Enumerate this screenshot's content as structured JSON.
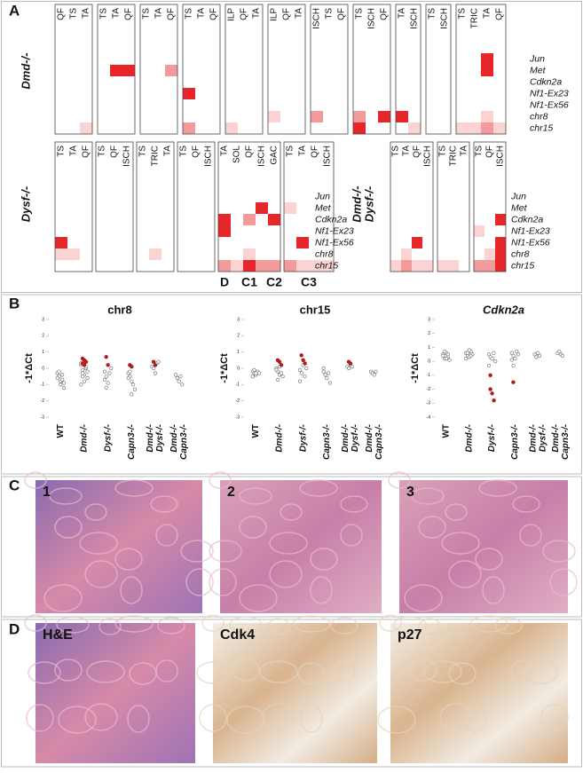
{
  "panels": {
    "a": "A",
    "b": "B",
    "c": "C",
    "d": "D"
  },
  "heatmap": {
    "rows": [
      "Jun",
      "Met",
      "Cdkn2a",
      "Nf1-Ex23",
      "Nf1-Ex56",
      "chr8",
      "chr15"
    ],
    "groups": [
      {
        "label": [
          "Dmd-/-"
        ],
        "boxes": [
          {
            "columns": [
              "QF",
              "TS",
              "TA"
            ],
            "cells": [
              [
                6,
                2,
                1
              ]
            ]
          },
          {
            "columns": [
              "TS",
              "TA",
              "QF"
            ],
            "cells": [
              [
                1,
                1,
                3
              ],
              [
                1,
                2,
                3
              ]
            ]
          },
          {
            "columns": [
              "TS",
              "TA",
              "QF"
            ],
            "cells": [
              [
                1,
                2,
                2
              ]
            ]
          },
          {
            "columns": [
              "TS",
              "TA",
              "QF"
            ],
            "cells": [
              [
                3,
                0,
                3
              ],
              [
                6,
                0,
                2
              ]
            ]
          },
          {
            "columns": [
              "ILP",
              "QF",
              "TA"
            ],
            "cells": [
              [
                6,
                0,
                1
              ]
            ]
          },
          {
            "columns": [
              "ILP",
              "QF",
              "TA"
            ],
            "cells": [
              [
                5,
                0,
                1
              ]
            ]
          },
          {
            "columns": [
              "ISCH",
              "TS",
              "QF"
            ],
            "cells": [
              [
                5,
                0,
                2
              ]
            ]
          },
          {
            "columns": [
              "TS",
              "ISCH",
              "QF"
            ],
            "cells": [
              [
                5,
                0,
                2
              ],
              [
                6,
                0,
                3
              ],
              [
                5,
                2,
                3
              ]
            ]
          },
          {
            "columns": [
              "TA",
              "ISCH"
            ],
            "cells": [
              [
                5,
                0,
                3
              ],
              [
                6,
                1,
                1
              ]
            ]
          },
          {
            "columns": [
              "TS",
              "ISCH"
            ],
            "cells": []
          },
          {
            "columns": [
              "TS",
              "TRIC",
              "TA",
              "QF"
            ],
            "cells": [
              [
                0,
                2,
                3
              ],
              [
                1,
                2,
                3
              ],
              [
                5,
                2,
                1
              ],
              [
                6,
                0,
                1
              ],
              [
                6,
                1,
                1
              ],
              [
                6,
                2,
                2
              ],
              [
                6,
                3,
                1
              ]
            ]
          }
        ]
      },
      {
        "label": [
          "Dysf-/-"
        ],
        "boxes": [
          {
            "columns": [
              "TS",
              "TA",
              "QF"
            ],
            "cells": [
              [
                4,
                0,
                3
              ],
              [
                5,
                0,
                1
              ],
              [
                5,
                1,
                1
              ]
            ]
          },
          {
            "columns": [
              "TS",
              "QF",
              "ISCH"
            ],
            "cells": []
          },
          {
            "columns": [
              "TS",
              "TRIC",
              "TA"
            ],
            "cells": [
              [
                5,
                1,
                1
              ]
            ]
          },
          {
            "columns": [
              "TS",
              "QF",
              "ISCH"
            ],
            "cells": []
          },
          {
            "columns": [
              "TA",
              "SOL",
              "QF",
              "ISCH",
              "GAC"
            ],
            "cells": [
              [
                2,
                0,
                3
              ],
              [
                3,
                0,
                3
              ],
              [
                2,
                2,
                2
              ],
              [
                1,
                3,
                3
              ],
              [
                2,
                4,
                3
              ],
              [
                5,
                2,
                1
              ],
              [
                6,
                0,
                2
              ],
              [
                6,
                1,
                1
              ],
              [
                6,
                2,
                3
              ],
              [
                6,
                3,
                2
              ],
              [
                6,
                4,
                2
              ]
            ]
          },
          {
            "columns": [
              "TS",
              "TA",
              "QF",
              "ISCH"
            ],
            "cells": [
              [
                1,
                0,
                1
              ],
              [
                4,
                1,
                3
              ],
              [
                6,
                0,
                2
              ],
              [
                6,
                1,
                1
              ],
              [
                6,
                2,
                1
              ],
              [
                6,
                3,
                1
              ]
            ]
          }
        ]
      },
      {
        "label": [
          "Dmd-/-",
          "Dysf-/-"
        ],
        "boxes": [
          {
            "columns": [
              "TS",
              "TA",
              "QF",
              "ISCH"
            ],
            "cells": [
              [
                4,
                2,
                3
              ],
              [
                5,
                1,
                1
              ],
              [
                6,
                0,
                1
              ],
              [
                6,
                1,
                2
              ],
              [
                6,
                2,
                1
              ],
              [
                6,
                3,
                1
              ]
            ]
          },
          {
            "columns": [
              "TS",
              "TRIC",
              "TA"
            ],
            "cells": [
              [
                6,
                0,
                1
              ],
              [
                6,
                1,
                1
              ]
            ]
          },
          {
            "columns": [
              "TS",
              "QF",
              "ISCH"
            ],
            "cells": [
              [
                2,
                2,
                3
              ],
              [
                3,
                0,
                1
              ],
              [
                4,
                2,
                3
              ],
              [
                5,
                2,
                3
              ],
              [
                5,
                1,
                1
              ],
              [
                6,
                0,
                2
              ],
              [
                6,
                1,
                2
              ],
              [
                6,
                2,
                3
              ]
            ]
          }
        ]
      }
    ],
    "clusters": [
      "D",
      "C1",
      "C2",
      "C3"
    ]
  },
  "panel_b": {
    "ylabel": "-1*ΔCt",
    "groups": [
      [
        "WT"
      ],
      [
        "Dmd-/-"
      ],
      [
        "Dysf-/-"
      ],
      [
        "Capn3-/-"
      ],
      [
        "Dmd-/-",
        "Dysf-/-"
      ],
      [
        "Dmd-/-",
        "Capn3-/-"
      ]
    ],
    "plots": [
      {
        "title": "chr8",
        "ylim": [
          -3,
          3
        ],
        "yticks": [
          -3,
          -2,
          -1,
          0,
          1,
          2,
          3
        ],
        "values": [
          [
            -0.3,
            -0.5,
            -0.8,
            -0.4,
            -1.2,
            -0.6,
            -0.2,
            -1.0,
            -0.7,
            -0.9
          ],
          [
            0.2,
            -0.1,
            -0.4,
            0,
            -0.6,
            0.3,
            -0.3,
            -0.8,
            0.1,
            -0.2,
            -1.0,
            -0.5
          ],
          [
            -0.2,
            -0.5,
            -0.9,
            -0.3,
            0,
            -0.7,
            -1.2
          ],
          [
            -0.3,
            -0.5,
            -0.8,
            -1.0,
            -1.3,
            -0.6,
            -0.2,
            -1.6
          ],
          [
            0.1,
            0,
            -0.3,
            0.3,
            0.4
          ],
          [
            -0.4,
            -0.6,
            -0.8,
            -0.5,
            -1.0
          ]
        ],
        "highlight": [
          [],
          [
            0.6,
            0.5,
            0.4,
            0.3,
            0.2
          ],
          [
            0.7,
            0.2
          ],
          [
            0.2,
            0.1
          ],
          [
            0.4,
            0.2
          ],
          []
        ]
      },
      {
        "title": "chr15",
        "ylim": [
          -3,
          3
        ],
        "yticks": [
          -3,
          -2,
          -1,
          0,
          1,
          2,
          3
        ],
        "values": [
          [
            -0.2,
            -0.3,
            -0.4,
            -0.2,
            -0.3,
            -0.5,
            -0.1,
            -0.3
          ],
          [
            0,
            -0.2,
            -0.4,
            0.2,
            -0.5,
            -0.1,
            -0.7,
            0.1,
            -0.3
          ],
          [
            -0.1,
            -0.3,
            0.2,
            -0.5,
            0,
            -0.8
          ],
          [
            -0.2,
            -0.4,
            -0.6,
            -0.3,
            -0.9,
            0
          ],
          [
            0.1,
            0,
            0.2,
            0.1
          ],
          [
            -0.2,
            -0.3,
            -0.4,
            -0.2
          ]
        ],
        "highlight": [
          [],
          [
            0.5,
            0.4,
            0.2
          ],
          [
            0.8,
            0.5,
            0.3
          ],
          [],
          [
            0.4,
            0.3
          ],
          []
        ]
      },
      {
        "title": "Cdkn2a",
        "ylim": [
          -4,
          3
        ],
        "yticks": [
          -4,
          -3,
          -2,
          -1,
          0,
          1,
          2,
          3
        ],
        "values": [
          [
            0.5,
            0.2,
            0.6,
            0.3,
            0.1,
            0.4,
            0.7,
            0.2,
            0.5
          ],
          [
            0.6,
            0.4,
            0.3,
            0.7,
            0.5,
            0.2,
            0.6,
            0.8,
            0.4
          ],
          [
            0.5,
            0.3,
            0.2,
            0.6,
            0,
            -0.3
          ],
          [
            0.6,
            0.4,
            0.2,
            0.7,
            0.5,
            0.1,
            -0.3
          ],
          [
            0.5,
            0.3,
            0.6,
            0.4
          ],
          [
            0.6,
            0.7,
            0.5,
            0.4
          ]
        ],
        "highlight": [
          [],
          [],
          [
            -2.0,
            -2.3,
            -2.8,
            -1.0
          ],
          [
            -1.5
          ],
          [],
          []
        ]
      }
    ]
  },
  "panel_c": {
    "images": [
      "1",
      "2",
      "3"
    ]
  },
  "panel_d": {
    "images": [
      "H&E",
      "Cdk4",
      "p27"
    ]
  }
}
